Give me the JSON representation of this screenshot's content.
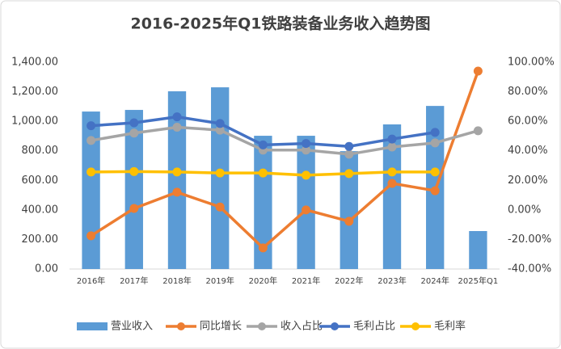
{
  "chart_data": {
    "type": "bar-line",
    "title": "2016-2025年Q1铁路装备业务收入趋势图",
    "categories": [
      "2016年",
      "2017年",
      "2018年",
      "2019年",
      "2020年",
      "2021年",
      "2022年",
      "2023年",
      "2024年",
      "2025年Q1"
    ],
    "series": [
      {
        "name": "营业收入",
        "type": "bar",
        "color": "#5b9bd5",
        "values": [
          1066,
          1077,
          1203,
          1230,
          902,
          902,
          798,
          979,
          1104,
          257
        ]
      },
      {
        "name": "同比增长",
        "type": "line",
        "axis": "y2",
        "color": "#ed7d31",
        "values": [
          -17.5,
          1,
          12,
          2,
          -25.7,
          0,
          -7.7,
          18,
          13,
          94
        ]
      },
      {
        "name": "收入占比",
        "type": "line",
        "axis": "y2",
        "color": "#a5a5a5",
        "values": [
          47,
          52,
          56,
          54,
          40.5,
          40.5,
          37.7,
          42.6,
          45.4,
          53.6
        ]
      },
      {
        "name": "毛利占比",
        "type": "line",
        "axis": "y2",
        "color": "#4472c4",
        "values": [
          57,
          59,
          63,
          58.5,
          44,
          45,
          43,
          48,
          52.5,
          null
        ]
      },
      {
        "name": "毛利率",
        "type": "line",
        "axis": "y2",
        "color": "#ffc000",
        "values": [
          25.7,
          26,
          25.7,
          25,
          25,
          23.5,
          24.6,
          25.7,
          25.7,
          null
        ]
      }
    ],
    "ylim": [
      0,
      1400
    ],
    "yticks": [
      {
        "value": 0,
        "label": "0.00"
      },
      {
        "value": 200,
        "label": "200.00"
      },
      {
        "value": 400,
        "label": "400.00"
      },
      {
        "value": 600,
        "label": "600.00"
      },
      {
        "value": 800,
        "label": "800.00"
      },
      {
        "value": 1000,
        "label": "1,000.00"
      },
      {
        "value": 1200,
        "label": "1,200.00"
      },
      {
        "value": 1400,
        "label": "1,400.00"
      }
    ],
    "y2lim": [
      -40,
      100
    ],
    "y2ticks": [
      {
        "value": -40,
        "label": "-40.00%"
      },
      {
        "value": -20,
        "label": "-20.00%"
      },
      {
        "value": 0,
        "label": "0.00%"
      },
      {
        "value": 20,
        "label": "20.00%"
      },
      {
        "value": 40,
        "label": "40.00%"
      },
      {
        "value": 60,
        "label": "60.00%"
      },
      {
        "value": 80,
        "label": "80.00%"
      },
      {
        "value": 100,
        "label": "100.00%"
      }
    ],
    "legend": "bottom"
  }
}
